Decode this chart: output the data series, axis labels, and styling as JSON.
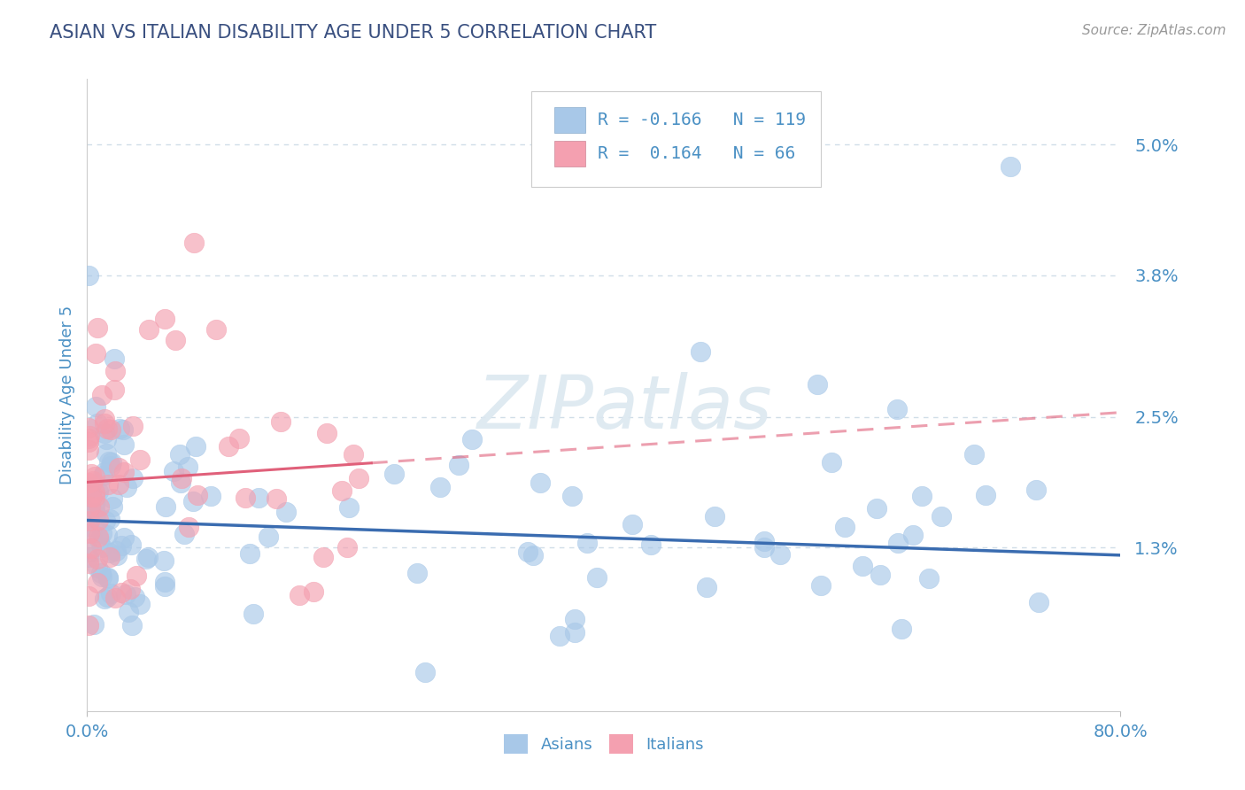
{
  "title": "ASIAN VS ITALIAN DISABILITY AGE UNDER 5 CORRELATION CHART",
  "source": "Source: ZipAtlas.com",
  "ylabel": "Disability Age Under 5",
  "xlim": [
    0.0,
    0.8
  ],
  "ylim": [
    -0.002,
    0.056
  ],
  "yticks": [
    0.013,
    0.025,
    0.038,
    0.05
  ],
  "ytick_labels": [
    "1.3%",
    "2.5%",
    "3.8%",
    "5.0%"
  ],
  "watermark_text": "ZIPatlas",
  "asian_color": "#a8c8e8",
  "italian_color": "#f4a0b0",
  "asian_line_color": "#3a6cb0",
  "italian_line_color": "#e0607a",
  "legend_asian_R": "-0.166",
  "legend_asian_N": "119",
  "legend_italian_R": "0.164",
  "legend_italian_N": "66",
  "title_color": "#3a5080",
  "axis_label_color": "#4a90c4",
  "grid_color": "#d0dde8",
  "background_color": "#ffffff",
  "asian_line_intercept": 0.0155,
  "asian_line_slope": -0.004,
  "italian_line_intercept": 0.019,
  "italian_line_slope": 0.008
}
